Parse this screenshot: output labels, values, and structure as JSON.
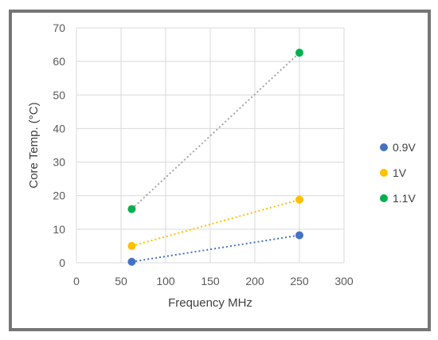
{
  "chart_data": {
    "type": "scatter",
    "title": "",
    "xlabel": "Frequency MHz",
    "ylabel": "Core Temp. (°C)",
    "xlim": [
      0,
      300
    ],
    "ylim": [
      0,
      70
    ],
    "xticks": [
      0,
      50,
      100,
      150,
      200,
      250,
      300
    ],
    "yticks": [
      0,
      10,
      20,
      30,
      40,
      50,
      60,
      70
    ],
    "grid": true,
    "legend_position": "right",
    "trendlines": "dotted linear",
    "series": [
      {
        "name": "0.9V",
        "color": "#4472C4",
        "x": [
          62,
          250
        ],
        "y": [
          0.3,
          8.2
        ]
      },
      {
        "name": "1V",
        "color": "#FFC000",
        "x": [
          62,
          250
        ],
        "y": [
          5,
          18.8
        ]
      },
      {
        "name": "1.1V",
        "color": "#00B050",
        "x": [
          62,
          250
        ],
        "y": [
          16,
          62.6
        ],
        "trend_color": "#A5A5A5"
      }
    ]
  }
}
